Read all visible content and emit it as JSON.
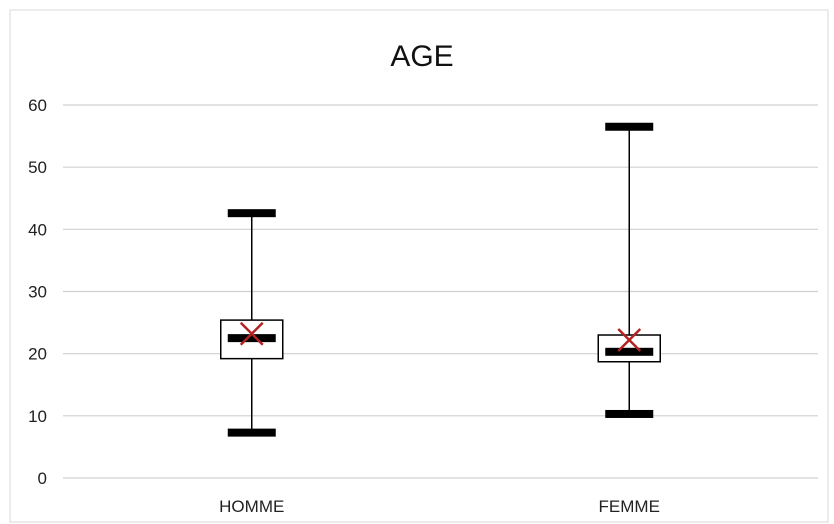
{
  "chart_data": {
    "type": "boxplot",
    "title": "AGE",
    "xlabel": "",
    "ylabel": "",
    "ylim": [
      0,
      60
    ],
    "yticks": [
      0,
      10,
      20,
      30,
      40,
      50,
      60
    ],
    "grid": true,
    "categories": [
      "HOMME",
      "FEMME"
    ],
    "boxes": [
      {
        "category": "HOMME",
        "min": 7.3,
        "q1": 19.2,
        "median": 22.5,
        "q3": 25.4,
        "max": 42.6,
        "mean": 23.2
      },
      {
        "category": "FEMME",
        "min": 10.3,
        "q1": 18.7,
        "median": 20.3,
        "q3": 23.0,
        "max": 56.5,
        "mean": 22.2
      }
    ],
    "colors": {
      "grid": "#d0d0d0",
      "box": "#000000",
      "mean_marker": "#b22222"
    }
  }
}
